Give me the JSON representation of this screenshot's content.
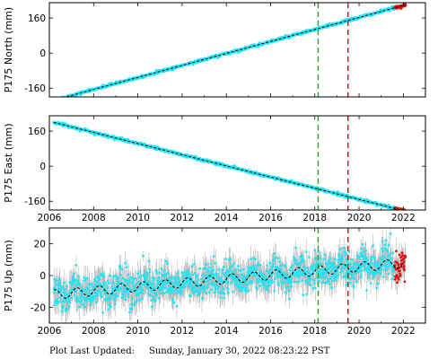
{
  "footer": {
    "label": "Plot Last Updated:",
    "timestamp": "Sunday, January 30, 2022 08:23:22 PST"
  },
  "colors": {
    "data": "#1ee6f5",
    "errorbar": "#b4b4b4",
    "model": "#000000",
    "recent": "#e01010",
    "event_green": "#22aa22",
    "event_red": "#cc1111"
  },
  "chart_data": [
    {
      "type": "scatter",
      "ylabel": "P175 North (mm)",
      "xlim": [
        2006,
        2023
      ],
      "ylim": [
        -200,
        230
      ],
      "xticks": [
        2006,
        2008,
        2010,
        2012,
        2014,
        2016,
        2018,
        2020,
        2022
      ],
      "xtick_labels": [
        "2006",
        "2008",
        "2010",
        "2012",
        "2014",
        "2016",
        "2018",
        "2020",
        "2022"
      ],
      "yticks": [
        -160,
        0,
        160
      ],
      "ytick_labels": [
        "-160",
        "0",
        "160"
      ],
      "show_xtick_labels": false,
      "grid": false,
      "trend": {
        "start": [
          2006.2,
          -215
        ],
        "end": [
          2022.1,
          220
        ]
      },
      "noise": 3,
      "seasonal_amplitude": 0,
      "event_lines": [
        {
          "x": 2018.15,
          "color": "green",
          "style": "dashed"
        },
        {
          "x": 2019.5,
          "color": "red",
          "style": "dashed"
        }
      ]
    },
    {
      "type": "scatter",
      "ylabel": "P175 East (mm)",
      "xlim": [
        2006,
        2023
      ],
      "ylim": [
        -200,
        230
      ],
      "xticks": [
        2006,
        2008,
        2010,
        2012,
        2014,
        2016,
        2018,
        2020,
        2022
      ],
      "xtick_labels": [
        "2006",
        "2008",
        "2010",
        "2012",
        "2014",
        "2016",
        "2018",
        "2020",
        "2022"
      ],
      "yticks": [
        -160,
        0,
        160
      ],
      "ytick_labels": [
        "-160",
        "0",
        "160"
      ],
      "show_xtick_labels": true,
      "grid": false,
      "trend": {
        "start": [
          2006.2,
          200
        ],
        "end": [
          2022.1,
          -205
        ]
      },
      "noise": 3,
      "seasonal_amplitude": 0,
      "event_lines": [
        {
          "x": 2018.15,
          "color": "green",
          "style": "dashed"
        },
        {
          "x": 2019.5,
          "color": "red",
          "style": "dashed"
        }
      ]
    },
    {
      "type": "scatter",
      "ylabel": "P175 Up (mm)",
      "xlim": [
        2006,
        2023
      ],
      "ylim": [
        -30,
        30
      ],
      "xticks": [
        2006,
        2008,
        2010,
        2012,
        2014,
        2016,
        2018,
        2020,
        2022
      ],
      "xtick_labels": [
        "2006",
        "2008",
        "2010",
        "2012",
        "2014",
        "2016",
        "2018",
        "2020",
        "2022"
      ],
      "yticks": [
        -20,
        0,
        20
      ],
      "ytick_labels": [
        "-20",
        "0",
        "20"
      ],
      "show_xtick_labels": true,
      "grid": false,
      "trend": {
        "start": [
          2006.2,
          -12
        ],
        "end": [
          2022.1,
          8
        ]
      },
      "noise": 5,
      "seasonal_amplitude": 3,
      "event_lines": [
        {
          "x": 2018.15,
          "color": "green",
          "style": "dashed"
        },
        {
          "x": 2019.5,
          "color": "red",
          "style": "dashed"
        }
      ]
    }
  ]
}
